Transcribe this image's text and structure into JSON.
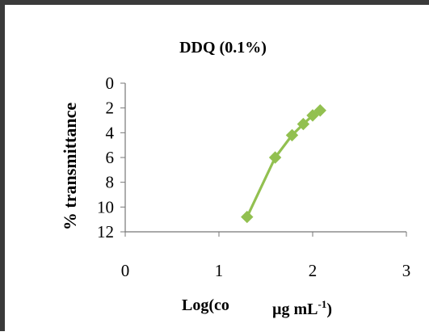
{
  "chart_data": {
    "type": "line",
    "title": "DDQ (0.1%)",
    "xlabel_left": "Log(co",
    "xlabel_right": "µg mL",
    "xlabel_superscript": "-1",
    "xlabel_close": ")",
    "ylabel": "% transmittance",
    "xlim": [
      0,
      3
    ],
    "ylim": [
      0,
      12
    ],
    "y_inverted": true,
    "x_ticks": [
      0,
      1,
      2,
      3
    ],
    "y_ticks": [
      0,
      2,
      4,
      6,
      8,
      10,
      12
    ],
    "grid": false,
    "legend": "none",
    "series": [
      {
        "color": "#92c050",
        "marker": "diamond",
        "x": [
          1.3,
          1.6,
          1.78,
          1.9,
          2.0,
          2.08
        ],
        "y": [
          10.8,
          6.0,
          4.2,
          3.3,
          2.6,
          2.2
        ]
      }
    ]
  }
}
